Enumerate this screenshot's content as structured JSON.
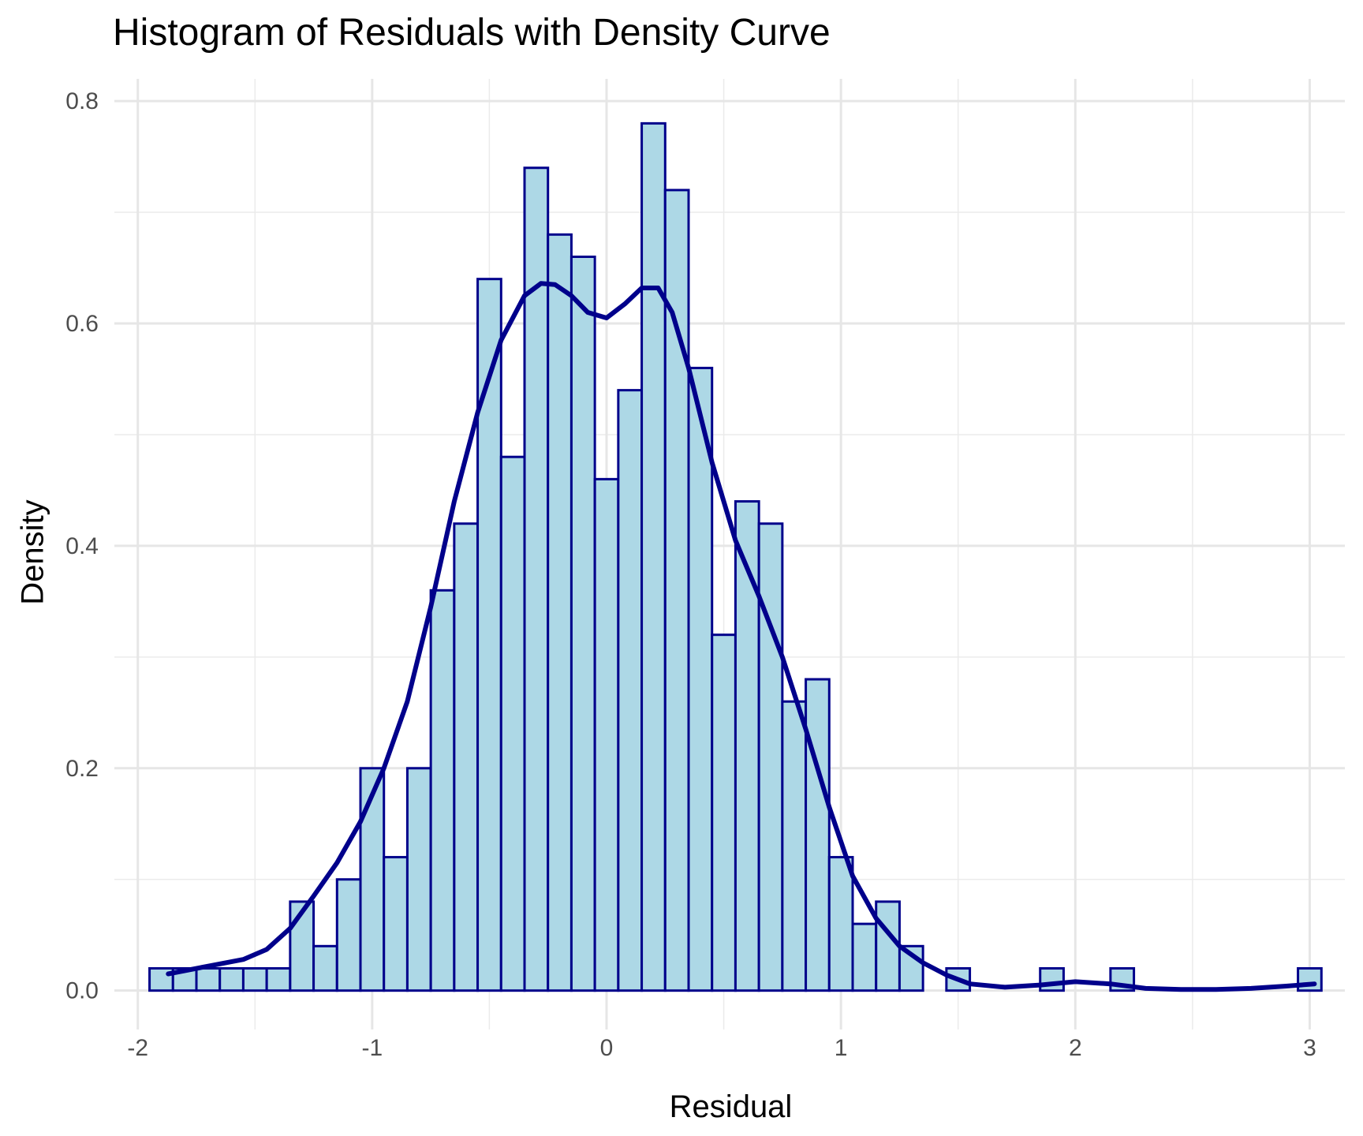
{
  "chart_data": {
    "type": "bar",
    "title": "Histogram of Residuals with Density Curve",
    "xlabel": "Residual",
    "ylabel": "Density",
    "xlim": [
      -2.1,
      3.15
    ],
    "ylim": [
      -0.035,
      0.82
    ],
    "x_ticks": [
      "-2",
      "-1",
      "0",
      "1",
      "2",
      "3"
    ],
    "x_tick_values": [
      -2,
      -1,
      0,
      1,
      2,
      3
    ],
    "y_ticks": [
      "0.0",
      "0.2",
      "0.4",
      "0.6",
      "0.8"
    ],
    "y_tick_values": [
      0,
      0.2,
      0.4,
      0.6,
      0.8
    ],
    "grid": true,
    "bin_width": 0.1,
    "bins": [
      {
        "x0": -1.95,
        "x1": -1.85,
        "value": 0.02
      },
      {
        "x0": -1.85,
        "x1": -1.75,
        "value": 0.02
      },
      {
        "x0": -1.75,
        "x1": -1.65,
        "value": 0.02
      },
      {
        "x0": -1.65,
        "x1": -1.55,
        "value": 0.02
      },
      {
        "x0": -1.55,
        "x1": -1.45,
        "value": 0.02
      },
      {
        "x0": -1.45,
        "x1": -1.35,
        "value": 0.02
      },
      {
        "x0": -1.35,
        "x1": -1.25,
        "value": 0.08
      },
      {
        "x0": -1.25,
        "x1": -1.15,
        "value": 0.04
      },
      {
        "x0": -1.15,
        "x1": -1.05,
        "value": 0.1
      },
      {
        "x0": -1.05,
        "x1": -0.95,
        "value": 0.2
      },
      {
        "x0": -0.95,
        "x1": -0.85,
        "value": 0.12
      },
      {
        "x0": -0.85,
        "x1": -0.75,
        "value": 0.2
      },
      {
        "x0": -0.75,
        "x1": -0.65,
        "value": 0.36
      },
      {
        "x0": -0.65,
        "x1": -0.55,
        "value": 0.42
      },
      {
        "x0": -0.55,
        "x1": -0.45,
        "value": 0.64
      },
      {
        "x0": -0.45,
        "x1": -0.35,
        "value": 0.48
      },
      {
        "x0": -0.35,
        "x1": -0.25,
        "value": 0.74
      },
      {
        "x0": -0.25,
        "x1": -0.15,
        "value": 0.68
      },
      {
        "x0": -0.15,
        "x1": -0.05,
        "value": 0.66
      },
      {
        "x0": -0.05,
        "x1": 0.05,
        "value": 0.46
      },
      {
        "x0": 0.05,
        "x1": 0.15,
        "value": 0.54
      },
      {
        "x0": 0.15,
        "x1": 0.25,
        "value": 0.78
      },
      {
        "x0": 0.25,
        "x1": 0.35,
        "value": 0.72
      },
      {
        "x0": 0.35,
        "x1": 0.45,
        "value": 0.56
      },
      {
        "x0": 0.45,
        "x1": 0.55,
        "value": 0.32
      },
      {
        "x0": 0.55,
        "x1": 0.65,
        "value": 0.44
      },
      {
        "x0": 0.65,
        "x1": 0.75,
        "value": 0.42
      },
      {
        "x0": 0.75,
        "x1": 0.85,
        "value": 0.26
      },
      {
        "x0": 0.85,
        "x1": 0.95,
        "value": 0.28
      },
      {
        "x0": 0.95,
        "x1": 1.05,
        "value": 0.12
      },
      {
        "x0": 1.05,
        "x1": 1.15,
        "value": 0.06
      },
      {
        "x0": 1.15,
        "x1": 1.25,
        "value": 0.08
      },
      {
        "x0": 1.25,
        "x1": 1.35,
        "value": 0.04
      },
      {
        "x0": 1.35,
        "x1": 1.45,
        "value": 0.0
      },
      {
        "x0": 1.45,
        "x1": 1.55,
        "value": 0.02
      },
      {
        "x0": 1.85,
        "x1": 1.95,
        "value": 0.02
      },
      {
        "x0": 2.15,
        "x1": 2.25,
        "value": 0.02
      },
      {
        "x0": 2.95,
        "x1": 3.05,
        "value": 0.02
      }
    ],
    "density_curve": {
      "x": [
        -1.87,
        -1.7,
        -1.55,
        -1.45,
        -1.35,
        -1.25,
        -1.15,
        -1.05,
        -0.95,
        -0.85,
        -0.75,
        -0.65,
        -0.55,
        -0.45,
        -0.35,
        -0.28,
        -0.22,
        -0.15,
        -0.08,
        0.0,
        0.08,
        0.15,
        0.22,
        0.28,
        0.35,
        0.45,
        0.55,
        0.65,
        0.75,
        0.85,
        0.95,
        1.05,
        1.15,
        1.25,
        1.35,
        1.45,
        1.55,
        1.7,
        1.85,
        2.0,
        2.15,
        2.3,
        2.45,
        2.6,
        2.75,
        2.9,
        3.02
      ],
      "y": [
        0.015,
        0.022,
        0.028,
        0.037,
        0.056,
        0.085,
        0.115,
        0.152,
        0.2,
        0.26,
        0.345,
        0.44,
        0.52,
        0.585,
        0.625,
        0.636,
        0.635,
        0.625,
        0.61,
        0.605,
        0.618,
        0.632,
        0.632,
        0.61,
        0.56,
        0.475,
        0.405,
        0.355,
        0.3,
        0.235,
        0.165,
        0.103,
        0.065,
        0.04,
        0.025,
        0.014,
        0.006,
        0.003,
        0.005,
        0.008,
        0.006,
        0.002,
        0.001,
        0.001,
        0.002,
        0.004,
        0.006
      ],
      "color": "#00008B"
    },
    "bar_fill": "#ADD8E6",
    "bar_outline": "#00008B"
  }
}
